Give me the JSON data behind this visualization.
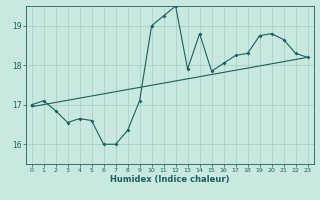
{
  "xlabel": "Humidex (Indice chaleur)",
  "ylabel": "",
  "bg_color": "#c8e8e0",
  "grid_color": "#a8ccc8",
  "line_color": "#1a6060",
  "xlim": [
    -0.5,
    23.5
  ],
  "ylim": [
    15.5,
    19.5
  ],
  "xticks": [
    0,
    1,
    2,
    3,
    4,
    5,
    6,
    7,
    8,
    9,
    10,
    11,
    12,
    13,
    14,
    15,
    16,
    17,
    18,
    19,
    20,
    21,
    22,
    23
  ],
  "yticks": [
    16,
    17,
    18,
    19
  ],
  "data_x": [
    0,
    1,
    2,
    3,
    4,
    5,
    6,
    7,
    8,
    9,
    10,
    11,
    12,
    13,
    14,
    15,
    16,
    17,
    18,
    19,
    20,
    21,
    22,
    23
  ],
  "data_y": [
    17.0,
    17.1,
    16.85,
    16.55,
    16.65,
    16.6,
    16.0,
    16.0,
    16.35,
    17.1,
    19.0,
    19.25,
    19.5,
    17.9,
    18.8,
    17.85,
    18.05,
    18.25,
    18.3,
    18.75,
    18.8,
    18.65,
    18.3,
    18.2
  ],
  "trend_x": [
    0,
    23
  ],
  "trend_y": [
    16.95,
    18.2
  ]
}
